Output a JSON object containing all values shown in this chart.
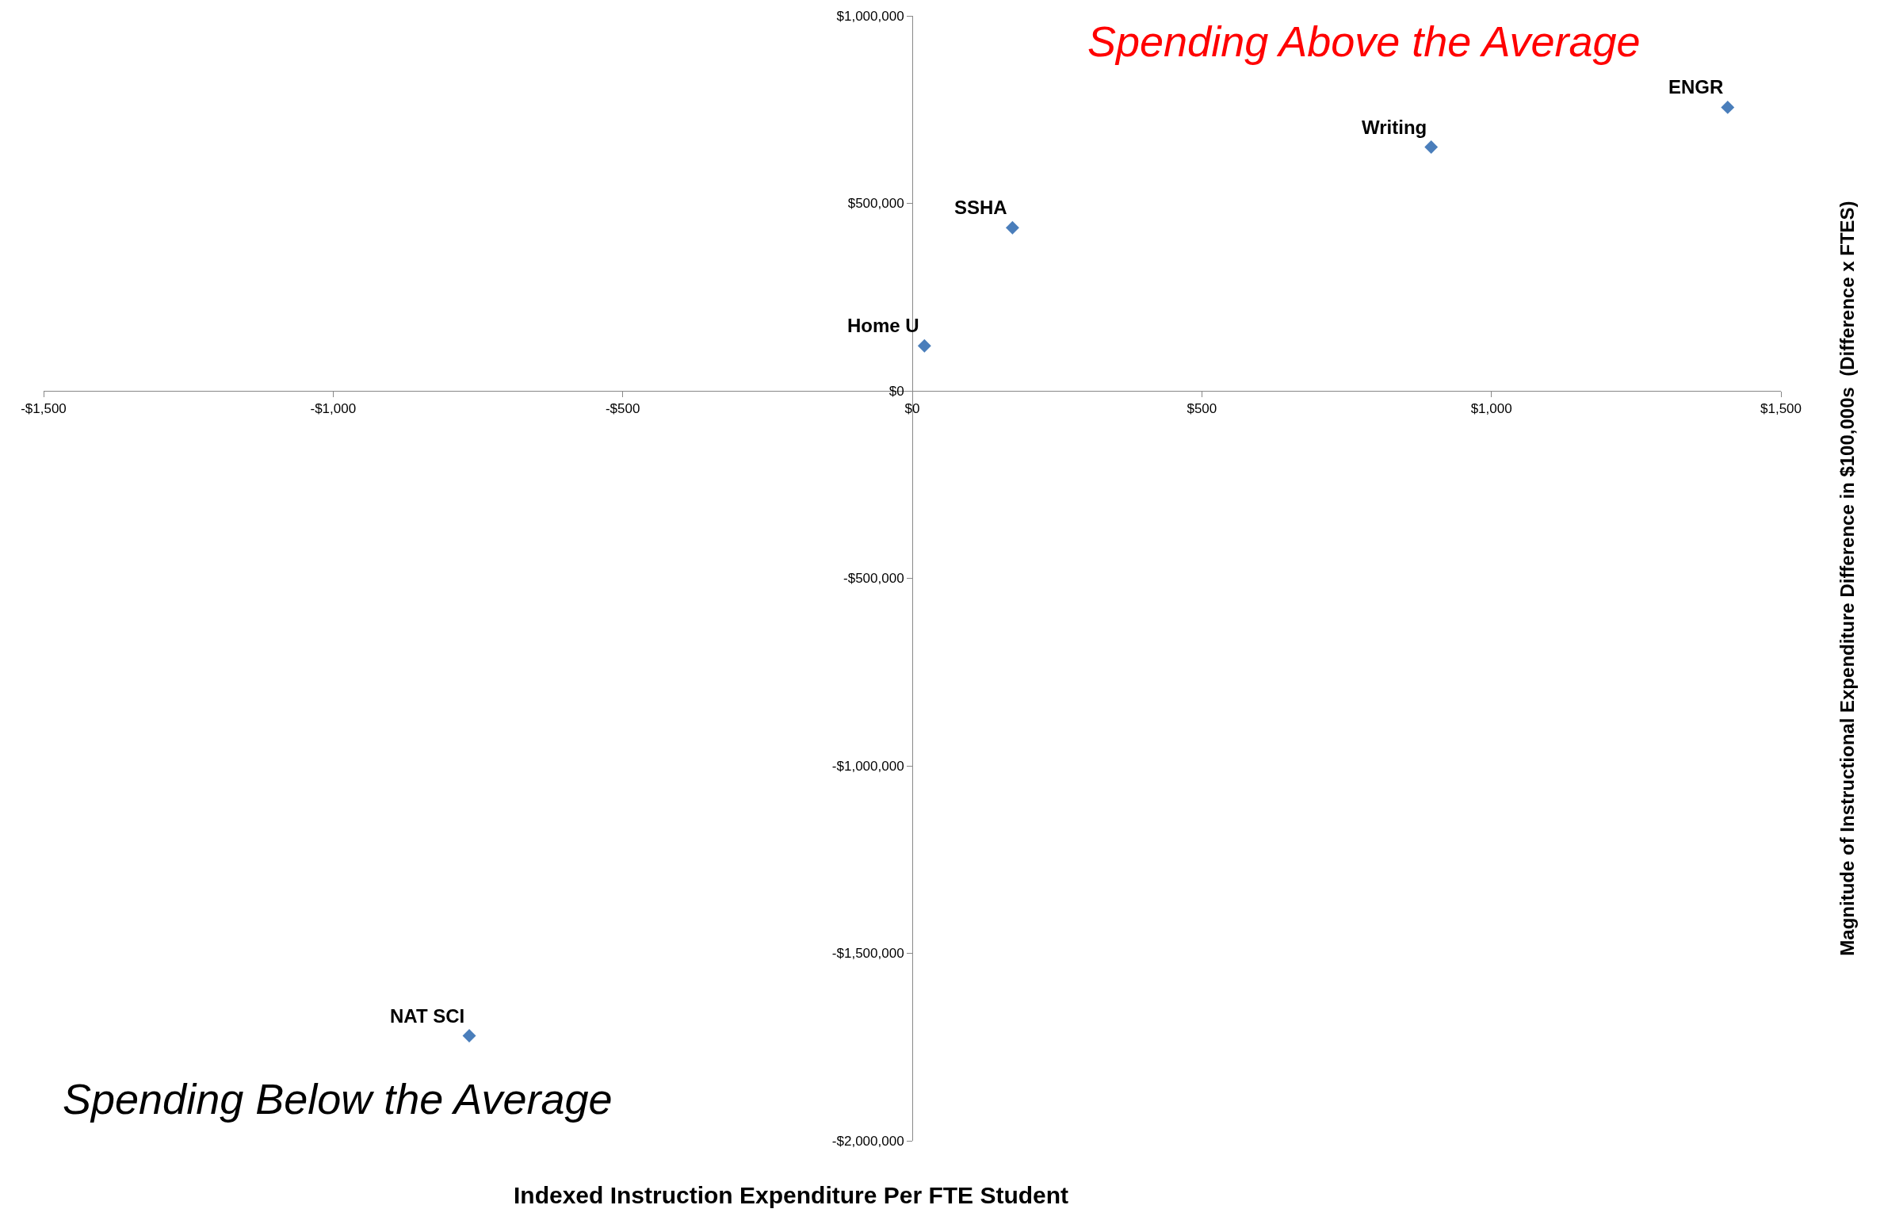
{
  "chart_data": {
    "type": "scatter",
    "xlabel": "Indexed Instruction Expenditure Per FTE Student",
    "ylabel": "Magnitude of Instructional Expenditure Difference in $100,000s  (Difference x FTES)",
    "x": [
      21,
      173,
      896,
      1408,
      -765
    ],
    "values": [
      120000,
      435000,
      650000,
      756000,
      -1720000
    ],
    "color": "#4a7ebb",
    "marker": "diamond",
    "grid": false,
    "xlim": [
      -1500,
      1500
    ],
    "xticks": [
      {
        "value": -1500,
        "label": "-$1,500"
      },
      {
        "value": -1000,
        "label": "-$1,000"
      },
      {
        "value": -500,
        "label": "-$500"
      },
      {
        "value": 0,
        "label": "$0"
      },
      {
        "value": 500,
        "label": "$500"
      },
      {
        "value": 1000,
        "label": "$1,000"
      },
      {
        "value": 1500,
        "label": "$1,500"
      }
    ],
    "ylim": [
      -2000000,
      1000000
    ],
    "yticks": [
      {
        "value": -2000000,
        "label": "-$2,000,000"
      },
      {
        "value": -1500000,
        "label": "-$1,500,000"
      },
      {
        "value": -1000000,
        "label": "-$1,000,000"
      },
      {
        "value": -500000,
        "label": "-$500,000"
      },
      {
        "value": 0,
        "label": "$0"
      },
      {
        "value": 500000,
        "label": "$500,000"
      },
      {
        "value": 1000000,
        "label": "$1,000,000"
      }
    ],
    "annotations": [
      "Spending Above the Average",
      "Spending Below the Average",
      {
        "text": "Home U",
        "x": 21,
        "y": 120000
      },
      {
        "text": "SSHA",
        "x": 173,
        "y": 435000
      },
      {
        "text": "Writing",
        "x": 896,
        "y": 650000
      },
      {
        "text": "ENGR",
        "x": 1408,
        "y": 756000
      },
      {
        "text": "NAT SCI",
        "x": -765,
        "y": -1720000
      }
    ]
  }
}
